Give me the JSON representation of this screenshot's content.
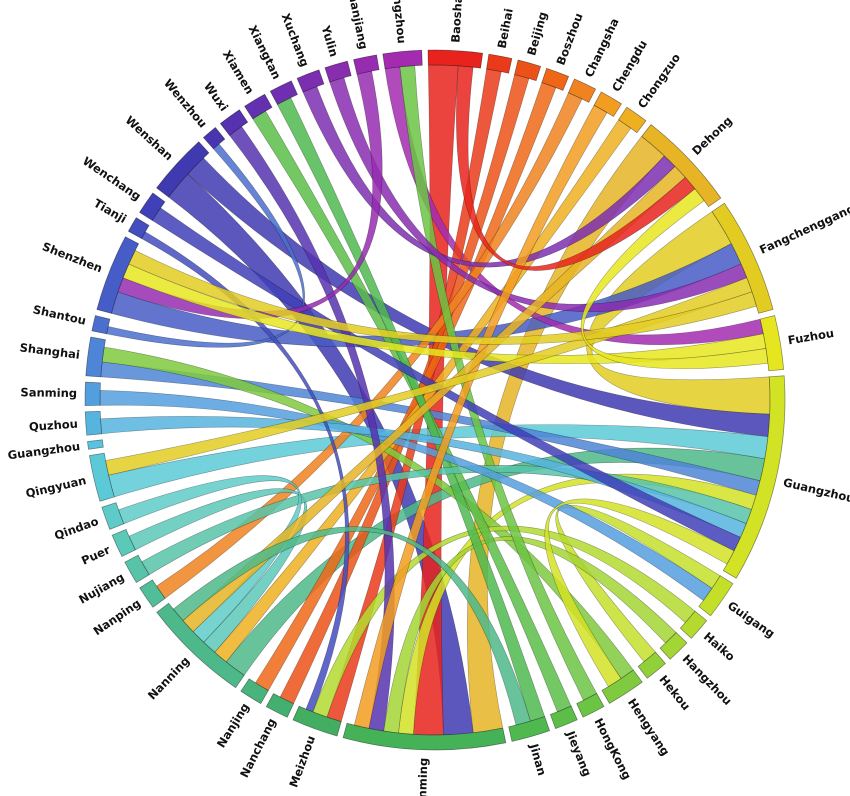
{
  "diagram": {
    "type": "chord",
    "nodes": [
      {
        "label": "Baoshan",
        "color": "#e8231d"
      },
      {
        "label": "Beihai",
        "color": "#ea3a19"
      },
      {
        "label": "Beijing",
        "color": "#ec5218"
      },
      {
        "label": "Boszhou",
        "color": "#ef6716"
      },
      {
        "label": "Changsha",
        "color": "#f08220"
      },
      {
        "label": "Chengdu",
        "color": "#f29c20"
      },
      {
        "label": "Chongzuo",
        "color": "#eeb021"
      },
      {
        "label": "Dehong",
        "color": "#e6b424"
      },
      {
        "label": "Fangchenggang",
        "color": "#e3cc22"
      },
      {
        "label": "Fuzhou",
        "color": "#e6e620"
      },
      {
        "label": "Guangzhou",
        "color": "#d2e225"
      },
      {
        "label": "Guigang",
        "color": "#c4df2a"
      },
      {
        "label": "Haiko",
        "color": "#b4da2f"
      },
      {
        "label": "Hangzhou",
        "color": "#a3d534"
      },
      {
        "label": "Hekou",
        "color": "#91d039"
      },
      {
        "label": "Hengyang",
        "color": "#7fca3e"
      },
      {
        "label": "HongKong",
        "color": "#6cc443"
      },
      {
        "label": "Jieyang",
        "color": "#5cbe48"
      },
      {
        "label": "Jinan",
        "color": "#4fb84f"
      },
      {
        "label": "Kunming",
        "color": "#45b258"
      },
      {
        "label": "Meizhou",
        "color": "#43ad62"
      },
      {
        "label": "Nanchang",
        "color": "#44b06f"
      },
      {
        "label": "Nanjing",
        "color": "#48b47c"
      },
      {
        "label": "Nanning",
        "color": "#4db98a"
      },
      {
        "label": "Nanping",
        "color": "#52be99"
      },
      {
        "label": "Nujiang",
        "color": "#57c3a8"
      },
      {
        "label": "Puer",
        "color": "#5bc8b8"
      },
      {
        "label": "Qindao",
        "color": "#5ecbc8"
      },
      {
        "label": "Qingyuan",
        "color": "#5ccad6"
      },
      {
        "label": "Guangzhou",
        "color": "#59c2de"
      },
      {
        "label": "Quzhou",
        "color": "#56b4df"
      },
      {
        "label": "Sanming",
        "color": "#539fde"
      },
      {
        "label": "Shanghai",
        "color": "#4f85d6"
      },
      {
        "label": "Shantou",
        "color": "#4a6fce"
      },
      {
        "label": "Shenzhen",
        "color": "#465cc6"
      },
      {
        "label": "Tianji",
        "color": "#434ebf"
      },
      {
        "label": "Wenchang",
        "color": "#4040b8"
      },
      {
        "label": "Wenshan",
        "color": "#3f3ab0"
      },
      {
        "label": "Wenzhou",
        "color": "#4935b0"
      },
      {
        "label": "Wuxi",
        "color": "#5632b0"
      },
      {
        "label": "Xiamen",
        "color": "#6330b0"
      },
      {
        "label": "Xiangtan",
        "color": "#6f2fb0"
      },
      {
        "label": "Xuchang",
        "color": "#7c2eb0"
      },
      {
        "label": "Yulin",
        "color": "#892db0"
      },
      {
        "label": "Zhanjiang",
        "color": "#962cb0"
      },
      {
        "label": "Zhengzhou",
        "color": "#a32bb0"
      }
    ],
    "links": [
      {
        "source": "Fangchenggang",
        "target": "Guangzhou",
        "weight": 5,
        "color": "#e3cc22"
      },
      {
        "source": "Dehong",
        "target": "Kunming",
        "weight": 4,
        "color": "#e6b424"
      },
      {
        "source": "Wenshan",
        "target": "Kunming",
        "weight": 4,
        "color": "#3f3ab0"
      },
      {
        "source": "Wenshan",
        "target": "Guangzhou",
        "weight": 3,
        "color": "#3f3ab0"
      },
      {
        "source": "Baoshan",
        "target": "Kunming",
        "weight": 4,
        "color": "#e8231d"
      },
      {
        "source": "Qingyuan",
        "target": "Guangzhou",
        "weight": 3,
        "color": "#5ccad6"
      },
      {
        "source": "Shenzhen",
        "target": "Fangchenggang",
        "weight": 3,
        "color": "#465cc6"
      },
      {
        "source": "Zhengzhou",
        "target": "Fuzhou",
        "weight": 2,
        "color": "#a32bb0"
      },
      {
        "source": "Nanning",
        "target": "Guangzhou",
        "weight": 3,
        "color": "#4db98a"
      },
      {
        "source": "Shanghai",
        "target": "Guangzhou",
        "weight": 2,
        "color": "#4f85d6"
      },
      {
        "source": "Beihai",
        "target": "Meizhou",
        "weight": 2,
        "color": "#ea3a19"
      },
      {
        "source": "Beijing",
        "target": "Nanchang",
        "weight": 2,
        "color": "#ec5218"
      },
      {
        "source": "Boszhou",
        "target": "Nanjing",
        "weight": 2,
        "color": "#ef6716"
      },
      {
        "source": "Changsha",
        "target": "Nanping",
        "weight": 2,
        "color": "#f08220"
      },
      {
        "source": "Chongzuo",
        "target": "Nanning",
        "weight": 2,
        "color": "#eeb021"
      },
      {
        "source": "Guangzhou",
        "target": "Kunming",
        "weight": 2,
        "color": "#d2e225"
      },
      {
        "source": "Hengyang",
        "target": "Shanghai",
        "weight": 2,
        "color": "#7fca3e"
      },
      {
        "source": "Guigang",
        "target": "Hekou",
        "weight": 2,
        "color": "#c4df2a"
      },
      {
        "source": "Haiko",
        "target": "Meizhou",
        "weight": 2,
        "color": "#b4da2f"
      },
      {
        "source": "Hangzhou",
        "target": "Kunming",
        "weight": 2,
        "color": "#a3d534"
      },
      {
        "source": "Jieyang",
        "target": "Xiamen",
        "weight": 2,
        "color": "#5cbe48"
      },
      {
        "source": "Jinan",
        "target": "Xiangtan",
        "weight": 2,
        "color": "#4fb84f"
      },
      {
        "source": "HongKong",
        "target": "Zhengzhou",
        "weight": 2,
        "color": "#6cc443"
      },
      {
        "source": "Puer",
        "target": "Nanning",
        "weight": 2,
        "color": "#5bc8b8"
      },
      {
        "source": "Nujiang",
        "target": "Guangzhou",
        "weight": 2,
        "color": "#57c3a8"
      },
      {
        "source": "Qindao",
        "target": "Nanning",
        "weight": 2,
        "color": "#5ecbc8"
      },
      {
        "source": "Sanming",
        "target": "Guigang",
        "weight": 2,
        "color": "#539fde"
      },
      {
        "source": "Quzhou",
        "target": "Guangzhou",
        "weight": 2,
        "color": "#56b4df"
      },
      {
        "source": "Wenchang",
        "target": "Guangzhou",
        "weight": 2,
        "color": "#4040b8"
      },
      {
        "source": "Shantou",
        "target": "Wenzhou",
        "weight": 1,
        "color": "#4a6fce"
      },
      {
        "source": "Tianji",
        "target": "Meizhou",
        "weight": 1,
        "color": "#434ebf"
      },
      {
        "source": "Wuxi",
        "target": "Kunming",
        "weight": 2,
        "color": "#5632b0"
      },
      {
        "source": "Xuchang",
        "target": "Dehong",
        "weight": 2,
        "color": "#7c2eb0"
      },
      {
        "source": "Yulin",
        "target": "Fangchenggang",
        "weight": 2,
        "color": "#892db0"
      },
      {
        "source": "Zhanjiang",
        "target": "Shenzhen",
        "weight": 2,
        "color": "#962cb0"
      },
      {
        "source": "Fuzhou",
        "target": "Shenzhen",
        "weight": 2,
        "color": "#e6e620"
      },
      {
        "source": "Chengdu",
        "target": "Kunming",
        "weight": 2,
        "color": "#f29c20"
      },
      {
        "source": "Dehong",
        "target": "Nanning",
        "weight": 2,
        "color": "#e6b424"
      },
      {
        "source": "Fangchenggang",
        "target": "Qingyuan",
        "weight": 2,
        "color": "#e3cc22"
      },
      {
        "source": "Fangchenggang",
        "target": "Shenzhen",
        "weight": 2,
        "color": "#e3cc22"
      },
      {
        "source": "Baoshan",
        "target": "Dehong",
        "weight": 2,
        "color": "#e8231d"
      },
      {
        "source": "Guangzhou",
        "target": "Hengyang",
        "weight": 2,
        "color": "#d2e225"
      },
      {
        "source": "Nanning",
        "target": "Jinan",
        "weight": 2,
        "color": "#4db98a"
      },
      {
        "source": "Fuzhou",
        "target": "Dehong",
        "weight": 2,
        "color": "#e6e620"
      }
    ]
  }
}
